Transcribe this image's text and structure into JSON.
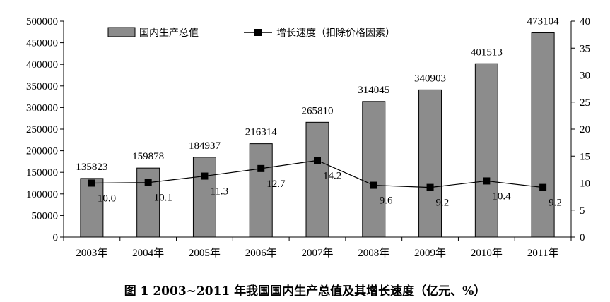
{
  "caption": "图 1    2003~2011 年我国国内生产总值及其增长速度（亿元、%）",
  "colors": {
    "bar_fill": "#8c8c8c",
    "bar_stroke": "#000000",
    "line": "#000000",
    "marker": "#000000"
  },
  "chart_data": {
    "type": "bar",
    "title": "",
    "categories": [
      "2003年",
      "2004年",
      "2005年",
      "2006年",
      "2007年",
      "2008年",
      "2009年",
      "2010年",
      "2011年"
    ],
    "series": [
      {
        "name": "国内生产总值",
        "type": "bar",
        "axis": "left",
        "values": [
          135823,
          159878,
          184937,
          216314,
          265810,
          314045,
          340903,
          401513,
          473104
        ]
      },
      {
        "name": "增长速度（扣除价格因素）",
        "type": "line",
        "axis": "right",
        "values": [
          10.0,
          10.1,
          11.3,
          12.7,
          14.2,
          9.6,
          9.2,
          10.4,
          9.2
        ],
        "labels": [
          "10.0",
          "10.1",
          "11.3",
          "12.7",
          "14.2",
          "9.6",
          "9.2",
          "10.4",
          "9.2"
        ]
      }
    ],
    "ylim": [
      0,
      500000
    ],
    "y_ticks": [
      "0",
      "50000",
      "100000",
      "150000",
      "200000",
      "250000",
      "300000",
      "350000",
      "400000",
      "450000",
      "500000"
    ],
    "y2lim": [
      0,
      40
    ],
    "y2_ticks": [
      "0",
      "5",
      "10",
      "15",
      "20",
      "25",
      "30",
      "35",
      "40"
    ],
    "legend": "top",
    "grid": false
  }
}
